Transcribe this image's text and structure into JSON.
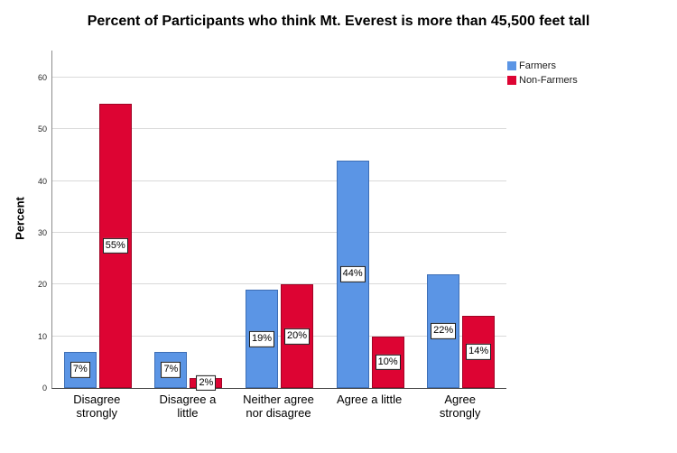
{
  "chart_data": {
    "type": "bar",
    "title": "Percent of Participants who think Mt. Everest is more than 45,500 feet tall",
    "xlabel": "",
    "ylabel": "Percent",
    "categories": [
      "Disagree strongly",
      "Disagree a little",
      "Neither agree nor disagree",
      "Agree a little",
      "Agree strongly"
    ],
    "category_lines": [
      [
        "Disagree",
        "strongly"
      ],
      [
        "Disagree a",
        "little"
      ],
      [
        "Neither agree",
        "nor disagree"
      ],
      [
        "Agree a little"
      ],
      [
        "Agree",
        "strongly"
      ]
    ],
    "series": [
      {
        "name": "Farmers",
        "color": "#5B95E5",
        "border_color": "#3D6EB5",
        "values": [
          7,
          7,
          19,
          44,
          22
        ],
        "labels": [
          "7%",
          "7%",
          "19%",
          "44%",
          "22%"
        ]
      },
      {
        "name": "Non-Farmers",
        "color": "#DD0433",
        "border_color": "#A00425",
        "values": [
          55,
          2,
          20,
          10,
          14
        ],
        "labels": [
          "55%",
          "2%",
          "20%",
          "10%",
          "14%"
        ]
      }
    ],
    "ylim": [
      0,
      60
    ],
    "ytick_step": 10,
    "yticks": [
      "0",
      "10",
      "20",
      "30",
      "40",
      "50",
      "60"
    ],
    "grid": "horizontal",
    "legend_position": "top-right",
    "colors": {
      "background": "#ffffff",
      "gridline": "#d9d9d9",
      "y_axis_line": "#8c8c8c",
      "x_axis_line": "#4d4d4d",
      "value_label_bg": "#ffffff",
      "value_label_border": "#1a1a1a"
    }
  }
}
